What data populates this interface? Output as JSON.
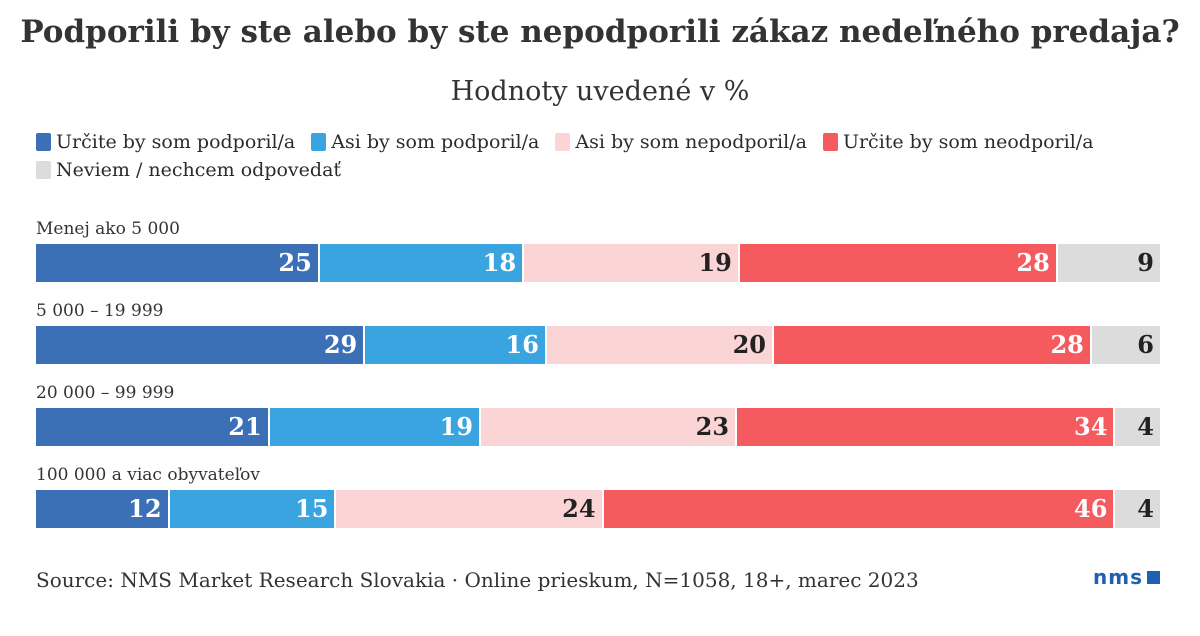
{
  "chart_data": {
    "type": "bar",
    "stacked": true,
    "orientation": "horizontal",
    "title": "Podporili by ste alebo by ste nepodporili zákaz nedeľného predaja?",
    "subtitle": "Hodnoty uvedené v %",
    "categories": [
      "Menej ako 5 000",
      "5 000 – 19 999",
      "20 000 – 99 999",
      "100 000 a viac obyvateľov"
    ],
    "series": [
      {
        "name": "Určite by som podporil/a",
        "color": "#3b6fb6",
        "label_color": "#ffffff",
        "values": [
          25,
          29,
          21,
          12
        ]
      },
      {
        "name": "Asi by som podporil/a",
        "color": "#3aa4e0",
        "label_color": "#ffffff",
        "values": [
          18,
          16,
          19,
          15
        ]
      },
      {
        "name": "Asi by som nepodporil/a",
        "color": "#fbd4d5",
        "label_color": "#222222",
        "values": [
          19,
          20,
          23,
          24
        ]
      },
      {
        "name": "Určite by som neodporil/a",
        "color": "#f55a5e",
        "label_color": "#ffffff",
        "values": [
          28,
          28,
          34,
          46
        ]
      },
      {
        "name": "Neviem / nechcem odpovedať",
        "color": "#dcdcdc",
        "label_color": "#222222",
        "values": [
          9,
          6,
          4,
          4
        ]
      }
    ],
    "legend_position": "top",
    "grid": false
  },
  "footer": {
    "source": "Source: NMS Market Research Slovakia · Online prieskum, N=1058, 18+, marec 2023",
    "logo": "nms"
  }
}
